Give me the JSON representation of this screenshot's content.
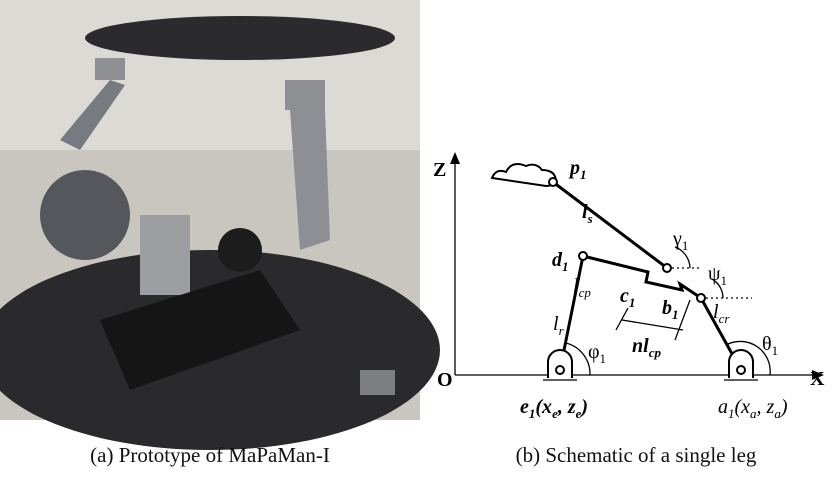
{
  "figure": {
    "panel_a": {
      "caption": "(a) Prototype of MaPaMan-I"
    },
    "panel_b": {
      "caption": "(b) Schematic of a single leg",
      "labels": [
        {
          "parts": [
            {
              "text": "Z"
            }
          ]
        },
        {
          "parts": [
            {
              "text": "X"
            }
          ]
        },
        {
          "parts": [
            {
              "text": "O"
            }
          ]
        },
        {
          "parts": [
            {
              "text": "p",
              "sub": "1"
            }
          ]
        },
        {
          "parts": [
            {
              "text": "l",
              "sub": "s"
            }
          ]
        },
        {
          "parts": [
            {
              "text": "γ",
              "sub": "1"
            }
          ]
        },
        {
          "parts": [
            {
              "text": "d",
              "sub": "1"
            }
          ]
        },
        {
          "parts": [
            {
              "text": "l",
              "sub": "cp"
            }
          ]
        },
        {
          "parts": [
            {
              "text": "c",
              "sub": "1"
            }
          ]
        },
        {
          "parts": [
            {
              "text": "ψ",
              "sub": "1"
            }
          ]
        },
        {
          "parts": [
            {
              "text": "b",
              "sub": "1"
            }
          ]
        },
        {
          "parts": [
            {
              "text": "l",
              "sub": "r"
            }
          ]
        },
        {
          "parts": [
            {
              "text": "l",
              "sub": "cr"
            }
          ]
        },
        {
          "parts": [
            {
              "text": "nl",
              "sub": "cp"
            }
          ]
        },
        {
          "parts": [
            {
              "text": "φ",
              "sub": "1"
            }
          ]
        },
        {
          "parts": [
            {
              "text": "θ",
              "sub": "1"
            }
          ]
        },
        {
          "parts": [
            {
              "text": "e",
              "sub": "1"
            },
            {
              "text": "(x",
              "sub": "e"
            },
            {
              "text": ", z",
              "sub": "e"
            },
            {
              "text": ")"
            }
          ]
        },
        {
          "parts": [
            {
              "text": "a",
              "sub": "1"
            },
            {
              "text": "(x",
              "sub": "a"
            },
            {
              "text": ", z",
              "sub": "a"
            },
            {
              "text": ")"
            }
          ]
        }
      ]
    }
  }
}
